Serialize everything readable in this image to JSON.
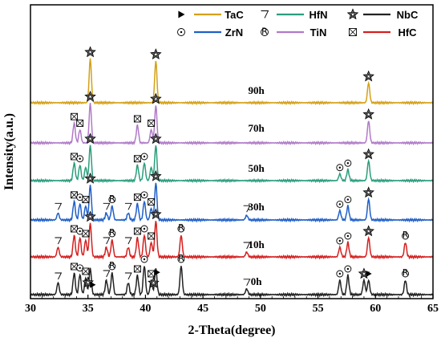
{
  "chart_data": {
    "type": "line",
    "xlabel": "2-Theta(degree)",
    "ylabel": "Intensity(a.u.)",
    "xlim": [
      30,
      65
    ],
    "x_ticks": [
      30,
      35,
      40,
      45,
      50,
      55,
      60,
      65
    ],
    "y_ticks_shown": false,
    "legend": {
      "placement": "top",
      "entries": [
        {
          "name": "TaC",
          "color": "#d4a017",
          "symbol": "filled-triangle-right"
        },
        {
          "name": "HfN",
          "color": "#2a9d7c",
          "symbol": "nabla-open"
        },
        {
          "name": "NbC",
          "color": "#222222",
          "symbol": "star"
        },
        {
          "name": "ZrN",
          "color": "#1f5fc8",
          "symbol": "circle-dot"
        },
        {
          "name": "TiN",
          "color": "#b07ac8",
          "symbol": "circled-R"
        },
        {
          "name": "HfC",
          "color": "#d42020",
          "symbol": "boxed-x"
        }
      ]
    },
    "series": [
      {
        "name": "0h",
        "color": "#222222",
        "peaks": [
          [
            32.4,
            0.25
          ],
          [
            33.8,
            0.45
          ],
          [
            34.3,
            0.42
          ],
          [
            34.8,
            0.35
          ],
          [
            35.2,
            0.55
          ],
          [
            36.6,
            0.3
          ],
          [
            37.1,
            0.45
          ],
          [
            38.5,
            0.25
          ],
          [
            39.3,
            0.4
          ],
          [
            39.9,
            0.6
          ],
          [
            40.5,
            0.3
          ],
          [
            40.9,
            0.55
          ],
          [
            43.1,
            0.6
          ],
          [
            48.8,
            0.12
          ],
          [
            56.9,
            0.3
          ],
          [
            57.6,
            0.4
          ],
          [
            59.0,
            0.3
          ],
          [
            59.4,
            0.3
          ],
          [
            62.6,
            0.3
          ]
        ]
      },
      {
        "name": "10h",
        "color": "#d42020",
        "peaks": [
          [
            32.4,
            0.2
          ],
          [
            33.8,
            0.45
          ],
          [
            34.3,
            0.4
          ],
          [
            34.8,
            0.35
          ],
          [
            35.2,
            0.7
          ],
          [
            36.6,
            0.2
          ],
          [
            37.1,
            0.35
          ],
          [
            38.5,
            0.2
          ],
          [
            39.3,
            0.4
          ],
          [
            39.9,
            0.45
          ],
          [
            40.5,
            0.3
          ],
          [
            40.9,
            0.75
          ],
          [
            43.1,
            0.45
          ],
          [
            48.8,
            0.1
          ],
          [
            56.9,
            0.2
          ],
          [
            57.6,
            0.3
          ],
          [
            59.4,
            0.4
          ],
          [
            62.6,
            0.3
          ]
        ]
      },
      {
        "name": "30h",
        "color": "#1f5fc8",
        "peaks": [
          [
            32.4,
            0.15
          ],
          [
            33.8,
            0.4
          ],
          [
            34.3,
            0.35
          ],
          [
            34.8,
            0.3
          ],
          [
            35.2,
            0.75
          ],
          [
            36.6,
            0.15
          ],
          [
            37.1,
            0.3
          ],
          [
            38.5,
            0.15
          ],
          [
            39.3,
            0.35
          ],
          [
            39.9,
            0.4
          ],
          [
            40.5,
            0.25
          ],
          [
            40.9,
            0.8
          ],
          [
            48.8,
            0.1
          ],
          [
            56.9,
            0.2
          ],
          [
            57.6,
            0.3
          ],
          [
            59.4,
            0.45
          ]
        ]
      },
      {
        "name": "50h",
        "color": "#2a9d7c",
        "peaks": [
          [
            33.8,
            0.4
          ],
          [
            34.3,
            0.35
          ],
          [
            34.8,
            0.3
          ],
          [
            35.2,
            0.8
          ],
          [
            39.3,
            0.35
          ],
          [
            39.9,
            0.4
          ],
          [
            40.5,
            0.3
          ],
          [
            40.9,
            0.8
          ],
          [
            56.9,
            0.15
          ],
          [
            57.6,
            0.25
          ],
          [
            59.4,
            0.45
          ]
        ]
      },
      {
        "name": "70h",
        "color": "#b07ac8",
        "peaks": [
          [
            33.8,
            0.45
          ],
          [
            34.3,
            0.3
          ],
          [
            35.2,
            0.9
          ],
          [
            39.3,
            0.4
          ],
          [
            40.5,
            0.3
          ],
          [
            40.9,
            0.85
          ],
          [
            59.4,
            0.5
          ]
        ]
      },
      {
        "name": "90h",
        "color": "#d4a017",
        "peaks": [
          [
            35.2,
            1.0
          ],
          [
            40.9,
            0.95
          ],
          [
            59.4,
            0.45
          ]
        ]
      }
    ],
    "annotations": [
      {
        "series": "90h",
        "markers": [
          [
            35.2,
            "star"
          ],
          [
            40.9,
            "star"
          ],
          [
            59.4,
            "star"
          ]
        ]
      },
      {
        "series": "70h",
        "markers": [
          [
            33.8,
            "boxed-x"
          ],
          [
            34.3,
            "boxed-x"
          ],
          [
            35.2,
            "star"
          ],
          [
            39.3,
            "boxed-x"
          ],
          [
            40.5,
            "boxed-x"
          ],
          [
            40.9,
            "star"
          ],
          [
            59.4,
            "star"
          ]
        ]
      },
      {
        "series": "50h",
        "markers": [
          [
            33.8,
            "boxed-x"
          ],
          [
            34.3,
            "circle-dot"
          ],
          [
            35.2,
            "star"
          ],
          [
            39.3,
            "boxed-x"
          ],
          [
            39.9,
            "circle-dot"
          ],
          [
            40.9,
            "star"
          ],
          [
            56.9,
            "circle-dot"
          ],
          [
            57.6,
            "circle-dot"
          ],
          [
            59.4,
            "star"
          ]
        ]
      },
      {
        "series": "30h",
        "markers": [
          [
            32.4,
            "nabla"
          ],
          [
            33.8,
            "boxed-x"
          ],
          [
            34.3,
            "circle-dot"
          ],
          [
            34.8,
            "boxed-x"
          ],
          [
            35.2,
            "star"
          ],
          [
            36.6,
            "nabla"
          ],
          [
            37.1,
            "circled-R"
          ],
          [
            38.5,
            "nabla"
          ],
          [
            39.3,
            "boxed-x"
          ],
          [
            39.9,
            "circle-dot"
          ],
          [
            40.5,
            "boxed-x"
          ],
          [
            40.9,
            "star"
          ],
          [
            48.8,
            "nabla"
          ],
          [
            56.9,
            "circle-dot"
          ],
          [
            57.6,
            "circle-dot"
          ],
          [
            59.4,
            "star"
          ]
        ]
      },
      {
        "series": "10h",
        "markers": [
          [
            32.4,
            "nabla"
          ],
          [
            33.8,
            "boxed-x"
          ],
          [
            34.3,
            "circle-dot"
          ],
          [
            34.8,
            "boxed-x"
          ],
          [
            35.2,
            "star"
          ],
          [
            36.6,
            "nabla"
          ],
          [
            37.1,
            "circled-R"
          ],
          [
            38.5,
            "nabla"
          ],
          [
            39.3,
            "boxed-x"
          ],
          [
            39.9,
            "circle-dot"
          ],
          [
            40.5,
            "boxed-x"
          ],
          [
            40.9,
            "star"
          ],
          [
            43.1,
            "circled-R"
          ],
          [
            48.8,
            "nabla"
          ],
          [
            56.9,
            "circle-dot"
          ],
          [
            57.6,
            "circle-dot"
          ],
          [
            59.4,
            "star"
          ],
          [
            62.6,
            "circled-R"
          ]
        ]
      },
      {
        "series": "0h",
        "markers": [
          [
            32.4,
            "nabla"
          ],
          [
            33.8,
            "boxed-x"
          ],
          [
            34.3,
            "circle-dot"
          ],
          [
            34.8,
            "boxed-x"
          ],
          [
            35.0,
            "star"
          ],
          [
            35.4,
            "triangle"
          ],
          [
            36.6,
            "nabla"
          ],
          [
            37.1,
            "circled-R"
          ],
          [
            38.5,
            "nabla"
          ],
          [
            39.3,
            "boxed-x"
          ],
          [
            39.9,
            "circle-dot"
          ],
          [
            40.5,
            "boxed-x"
          ],
          [
            40.7,
            "star"
          ],
          [
            41.0,
            "triangle"
          ],
          [
            43.1,
            "circled-R"
          ],
          [
            48.8,
            "nabla"
          ],
          [
            56.9,
            "circle-dot"
          ],
          [
            57.6,
            "circle-dot"
          ],
          [
            59.0,
            "star"
          ],
          [
            59.4,
            "triangle"
          ],
          [
            62.6,
            "circled-R"
          ]
        ]
      }
    ]
  }
}
